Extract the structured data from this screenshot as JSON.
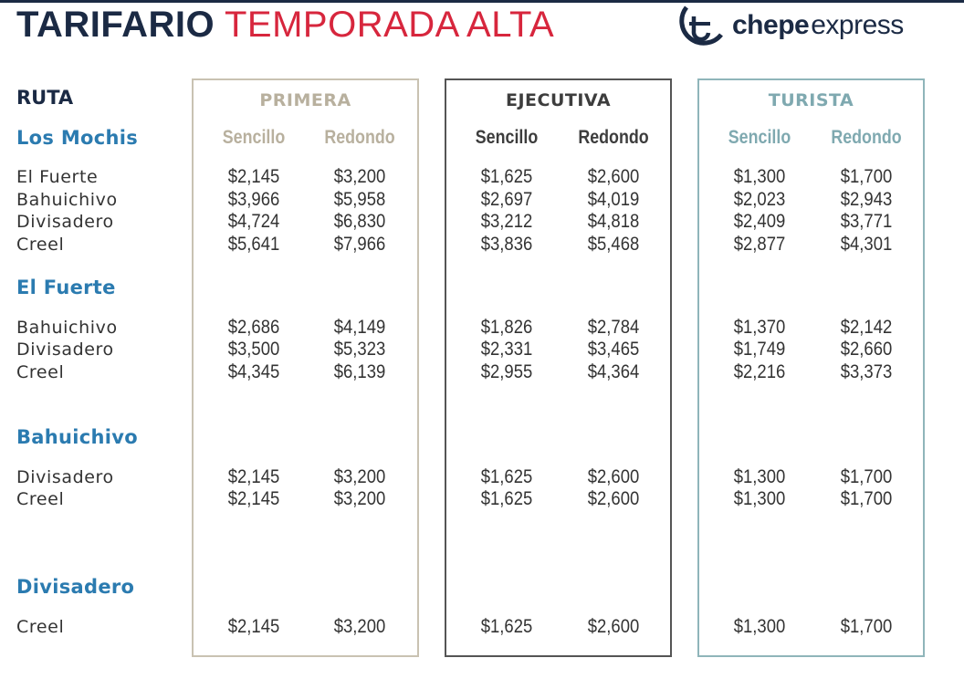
{
  "header": {
    "title_bold": "TARIFARIO",
    "title_light": "TEMPORADA ALTA"
  },
  "logo": {
    "word_bold": "chepe",
    "word_light": "express",
    "icon": "chepe-logo-icon"
  },
  "ruta_label": "RUTA",
  "colors": {
    "navy": "#1b2a44",
    "red": "#d7263d",
    "route_blue": "#2b7bb0",
    "primera": "#b8b09e",
    "ejecutiva": "#3d3d3d",
    "turista": "#7fa9b0"
  },
  "classes": [
    {
      "name": "PRIMERA",
      "sencillo": "Sencillo",
      "redondo": "Redondo"
    },
    {
      "name": "EJECUTIVA",
      "sencillo": "Sencillo",
      "redondo": "Redondo"
    },
    {
      "name": "TURISTA",
      "sencillo": "Sencillo",
      "redondo": "Redondo"
    }
  ],
  "origins": [
    {
      "name": "Los Mochis",
      "routes": [
        {
          "dest": "El Fuerte",
          "prices": [
            "$2,145",
            "$3,200",
            "$1,625",
            "$2,600",
            "$1,300",
            "$1,700"
          ]
        },
        {
          "dest": "Bahuichivo",
          "prices": [
            "$3,966",
            "$5,958",
            "$2,697",
            "$4,019",
            "$2,023",
            "$2,943"
          ]
        },
        {
          "dest": "Divisadero",
          "prices": [
            "$4,724",
            "$6,830",
            "$3,212",
            "$4,818",
            "$2,409",
            "$3,771"
          ]
        },
        {
          "dest": "Creel",
          "prices": [
            "$5,641",
            "$7,966",
            "$3,836",
            "$5,468",
            "$2,877",
            "$4,301"
          ]
        }
      ]
    },
    {
      "name": "El Fuerte",
      "routes": [
        {
          "dest": "Bahuichivo",
          "prices": [
            "$2,686",
            "$4,149",
            "$1,826",
            "$2,784",
            "$1,370",
            "$2,142"
          ]
        },
        {
          "dest": "Divisadero",
          "prices": [
            "$3,500",
            "$5,323",
            "$2,331",
            "$3,465",
            "$1,749",
            "$2,660"
          ]
        },
        {
          "dest": "Creel",
          "prices": [
            "$4,345",
            "$6,139",
            "$2,955",
            "$4,364",
            "$2,216",
            "$3,373"
          ]
        }
      ]
    },
    {
      "name": "Bahuichivo",
      "routes": [
        {
          "dest": "Divisadero",
          "prices": [
            "$2,145",
            "$3,200",
            "$1,625",
            "$2,600",
            "$1,300",
            "$1,700"
          ]
        },
        {
          "dest": "Creel",
          "prices": [
            "$2,145",
            "$3,200",
            "$1,625",
            "$2,600",
            "$1,300",
            "$1,700"
          ]
        }
      ]
    },
    {
      "name": "Divisadero",
      "routes": [
        {
          "dest": "Creel",
          "prices": [
            "$2,145",
            "$3,200",
            "$1,625",
            "$2,600",
            "$1,300",
            "$1,700"
          ]
        }
      ]
    }
  ]
}
